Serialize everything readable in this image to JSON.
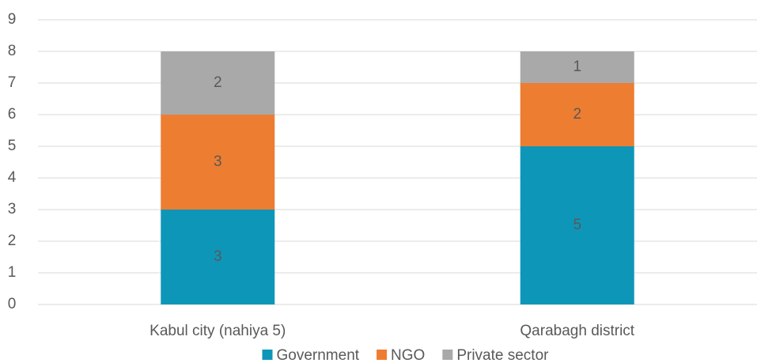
{
  "chart_data": {
    "type": "stacked_bar",
    "categories": [
      "Kabul city (nahiya 5)",
      "Qarabagh district"
    ],
    "series": [
      {
        "name": "Government",
        "color": "#0e96b9",
        "values": [
          3,
          5
        ]
      },
      {
        "name": "NGO",
        "color": "#ed7d31",
        "values": [
          3,
          2
        ]
      },
      {
        "name": "Private sector",
        "color": "#a9a9a9",
        "values": [
          2,
          1
        ]
      }
    ],
    "ylim": [
      0,
      9
    ],
    "yticks": [
      0,
      1,
      2,
      3,
      4,
      5,
      6,
      7,
      8,
      9
    ],
    "grid": true,
    "legend": "bottom"
  }
}
